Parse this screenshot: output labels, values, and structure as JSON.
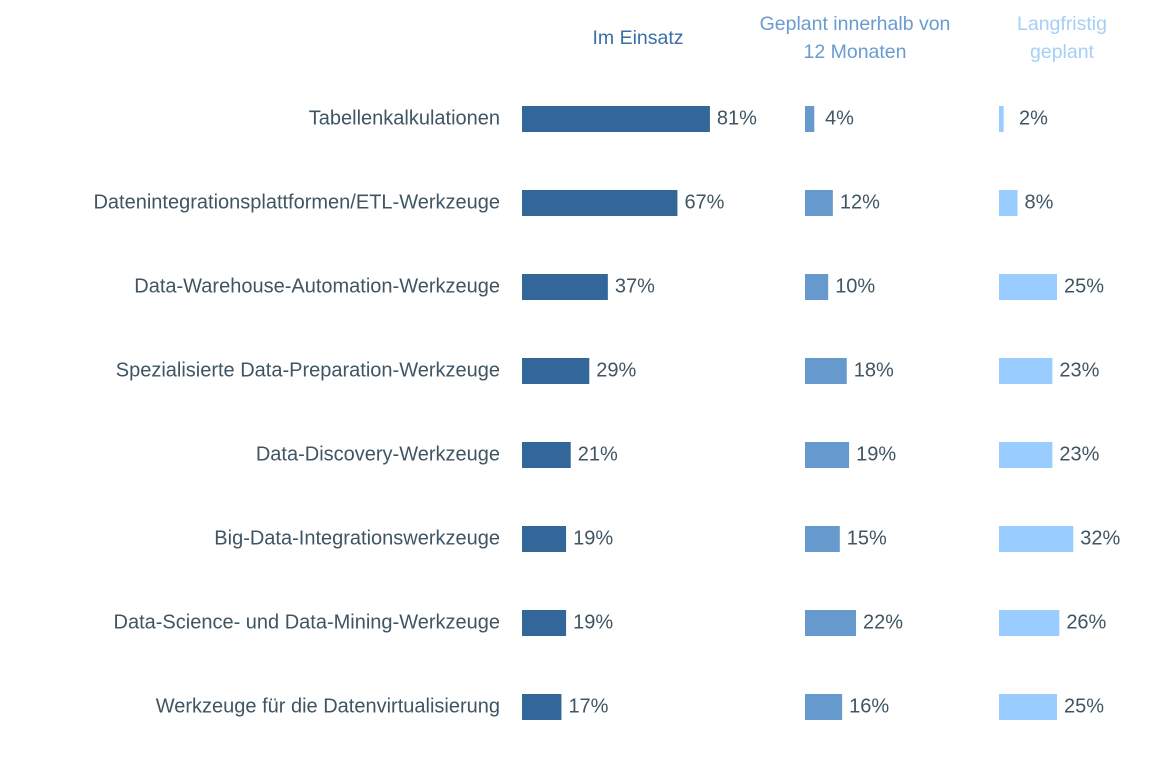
{
  "chart_data": {
    "type": "bar",
    "orientation": "horizontal",
    "categories": [
      "Tabellenkalkulationen",
      "Datenintegrationsplattformen/ETL-Werkzeuge",
      "Data-Warehouse-Automation-Werkzeuge",
      "Spezialisierte Data-Preparation-Werkzeuge",
      "Data-Discovery-Werkzeuge",
      "Big-Data-Integrationswerkzeuge",
      "Data-Science- und Data-Mining-Werkzeuge",
      "Werkzeuge für die Datenvirtualisierung"
    ],
    "series": [
      {
        "name": "Im Einsatz",
        "color": "#336699",
        "values": [
          81,
          67,
          37,
          29,
          21,
          19,
          19,
          17
        ],
        "value_labels": [
          "81%",
          "67%",
          "37%",
          "29%",
          "21%",
          "19%",
          "19%",
          "17%"
        ]
      },
      {
        "name": "Geplant innerhalb von 12 Monaten",
        "color": "#6699cc",
        "values": [
          4,
          12,
          10,
          18,
          19,
          15,
          22,
          16
        ],
        "value_labels": [
          "4%",
          "12%",
          "10%",
          "18%",
          "19%",
          "15%",
          "22%",
          "16%"
        ]
      },
      {
        "name": "Langfristig geplant",
        "color": "#99ccff",
        "values": [
          2,
          8,
          25,
          23,
          23,
          32,
          26,
          25
        ],
        "value_labels": [
          "2%",
          "8%",
          "25%",
          "23%",
          "23%",
          "32%",
          "26%",
          "25%"
        ]
      }
    ]
  }
}
